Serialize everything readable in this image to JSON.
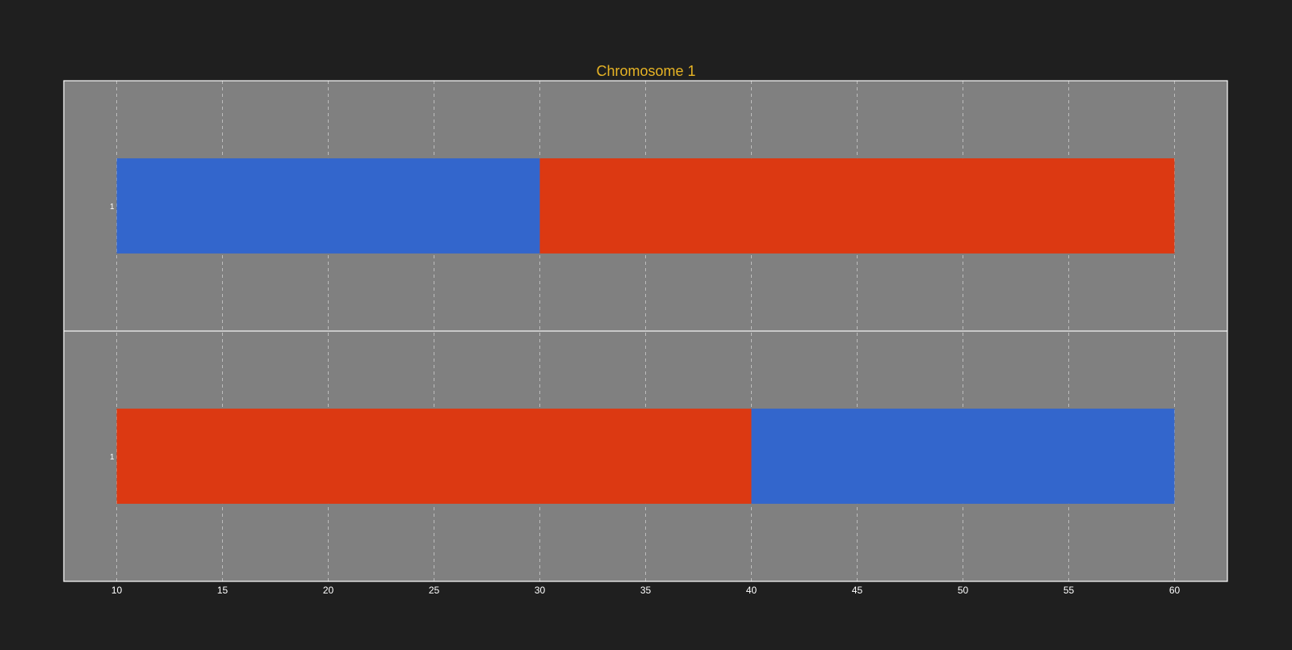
{
  "chart_data": {
    "type": "bar",
    "title": "Chromosome 1",
    "xlabel": "",
    "ylabel": "",
    "xlim": [
      7.5,
      62.5
    ],
    "x_ticks": [
      10,
      15,
      20,
      25,
      30,
      35,
      40,
      45,
      50,
      55,
      60
    ],
    "grid": true,
    "legend": "none",
    "tracks": [
      {
        "label": "1",
        "segments": [
          {
            "start": 10,
            "end": 30,
            "color": "#3366cc"
          },
          {
            "start": 30,
            "end": 60,
            "color": "#dc3912"
          }
        ]
      },
      {
        "label": "1",
        "segments": [
          {
            "start": 10,
            "end": 40,
            "color": "#dc3912"
          },
          {
            "start": 40,
            "end": 60,
            "color": "#3366cc"
          }
        ]
      }
    ]
  },
  "colors": {
    "background": "#1f1f1f",
    "plot_area": "#808080",
    "title": "#e6b325",
    "border": "#ffffff",
    "grid": "#d0d0d0",
    "tick_text": "#ffffff"
  }
}
